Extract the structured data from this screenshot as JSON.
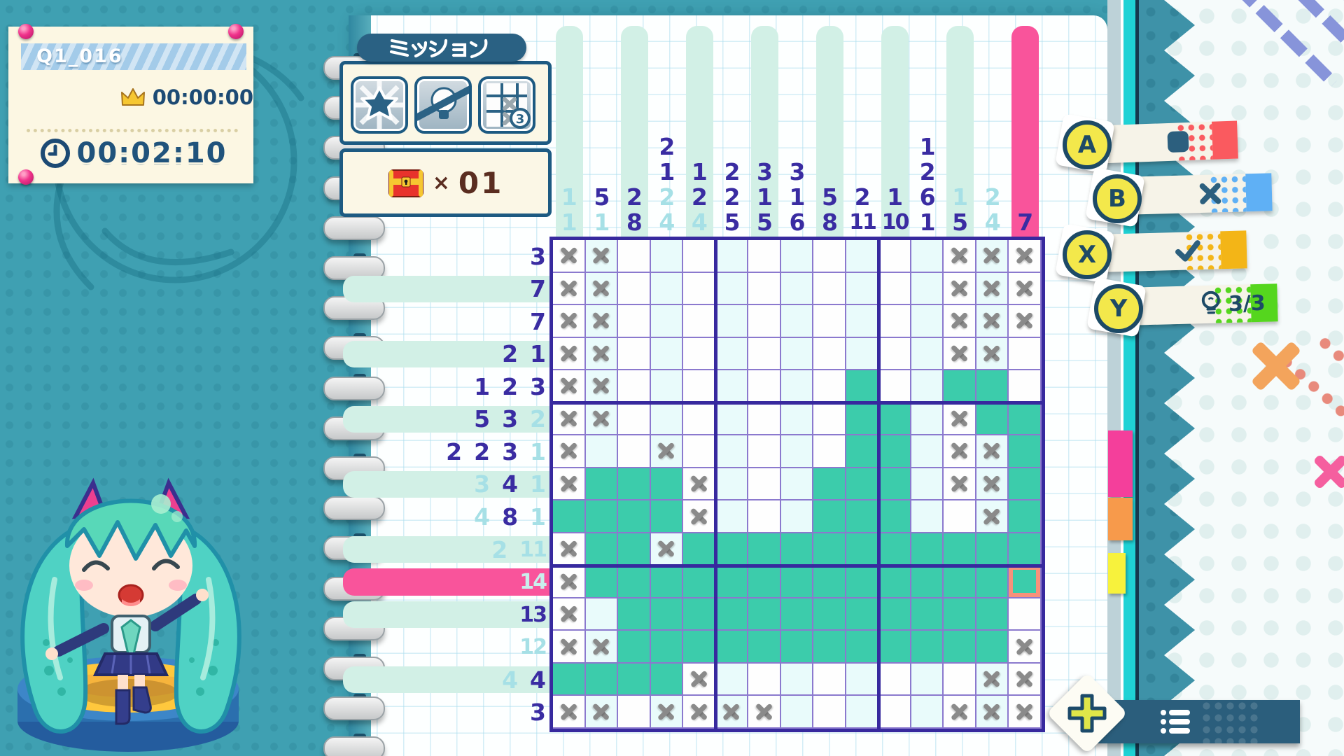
{
  "info_panel": {
    "title": "Q1_016",
    "best_time": "00:00:00",
    "current_time": "00:02:10"
  },
  "mission": {
    "title": "ミッション",
    "icons": [
      {
        "name": "star-clear"
      },
      {
        "name": "no-hints"
      },
      {
        "name": "limited-marks",
        "badge": "3"
      }
    ]
  },
  "treasure": {
    "times_symbol": "×",
    "count": "01"
  },
  "legend": {
    "items": [
      {
        "button": "A",
        "icon": "fill-square",
        "color": "#fa5a5f"
      },
      {
        "button": "B",
        "icon": "x-mark",
        "color": "#5fb0f5"
      },
      {
        "button": "X",
        "icon": "check-mark",
        "color": "#f3b517"
      },
      {
        "button": "Y",
        "icon": "hint-bulb",
        "color": "#55d61e",
        "count": "3/3"
      }
    ]
  },
  "footer": {
    "plus_button": "add",
    "list_button": "list"
  },
  "board": {
    "size": 15,
    "colors": {
      "fill": "#3cccab",
      "mark": "#8a8a8a",
      "hint_dark": "#3a2ca2",
      "hint_faded": "#a6e0e6",
      "highlight": "#f9549b",
      "cursor": "#f8917b",
      "grid_line": "#8b79ce",
      "grid_border": "#37299e",
      "stripe": "#d2f0e6",
      "cell_tint": "#e9fbfb"
    },
    "col_hints": [
      [
        {
          "v": 1,
          "s": "f"
        },
        {
          "v": 1,
          "s": "f"
        }
      ],
      [
        {
          "v": 5,
          "s": "d"
        },
        {
          "v": 1,
          "s": "f"
        }
      ],
      [
        {
          "v": 2,
          "s": "d"
        },
        {
          "v": 8,
          "s": "d"
        }
      ],
      [
        {
          "v": 2,
          "s": "d"
        },
        {
          "v": 1,
          "s": "d"
        },
        {
          "v": 2,
          "s": "f"
        },
        {
          "v": 4,
          "s": "f"
        }
      ],
      [
        {
          "v": 1,
          "s": "d"
        },
        {
          "v": 2,
          "s": "d"
        },
        {
          "v": 4,
          "s": "f"
        }
      ],
      [
        {
          "v": 2,
          "s": "d"
        },
        {
          "v": 2,
          "s": "d"
        },
        {
          "v": 5,
          "s": "d"
        }
      ],
      [
        {
          "v": 3,
          "s": "d"
        },
        {
          "v": 1,
          "s": "d"
        },
        {
          "v": 5,
          "s": "d"
        }
      ],
      [
        {
          "v": 3,
          "s": "d"
        },
        {
          "v": 1,
          "s": "d"
        },
        {
          "v": 6,
          "s": "d"
        }
      ],
      [
        {
          "v": 5,
          "s": "d"
        },
        {
          "v": 8,
          "s": "d"
        }
      ],
      [
        {
          "v": 2,
          "s": "d"
        },
        {
          "v": 11,
          "s": "d"
        }
      ],
      [
        {
          "v": 1,
          "s": "d"
        },
        {
          "v": 10,
          "s": "d"
        }
      ],
      [
        {
          "v": 1,
          "s": "d"
        },
        {
          "v": 2,
          "s": "d"
        },
        {
          "v": 6,
          "s": "d"
        },
        {
          "v": 1,
          "s": "d"
        }
      ],
      [
        {
          "v": 1,
          "s": "f"
        },
        {
          "v": 5,
          "s": "d"
        }
      ],
      [
        {
          "v": 2,
          "s": "f"
        },
        {
          "v": 4,
          "s": "f"
        }
      ],
      [
        {
          "v": 7,
          "s": "d"
        }
      ]
    ],
    "row_hints": [
      [
        {
          "v": 3,
          "s": "d"
        }
      ],
      [
        {
          "v": 7,
          "s": "d"
        }
      ],
      [
        {
          "v": 7,
          "s": "d"
        }
      ],
      [
        {
          "v": 2,
          "s": "d"
        },
        {
          "v": 1,
          "s": "d"
        }
      ],
      [
        {
          "v": 1,
          "s": "d"
        },
        {
          "v": 2,
          "s": "d"
        },
        {
          "v": 3,
          "s": "d"
        }
      ],
      [
        {
          "v": 5,
          "s": "d"
        },
        {
          "v": 3,
          "s": "d"
        },
        {
          "v": 2,
          "s": "f"
        }
      ],
      [
        {
          "v": 2,
          "s": "d"
        },
        {
          "v": 2,
          "s": "d"
        },
        {
          "v": 3,
          "s": "d"
        },
        {
          "v": 1,
          "s": "f"
        }
      ],
      [
        {
          "v": 3,
          "s": "f"
        },
        {
          "v": 4,
          "s": "d"
        },
        {
          "v": 1,
          "s": "f"
        }
      ],
      [
        {
          "v": 4,
          "s": "f"
        },
        {
          "v": 8,
          "s": "d"
        },
        {
          "v": 1,
          "s": "f"
        }
      ],
      [
        {
          "v": 2,
          "s": "f"
        },
        {
          "v": 11,
          "s": "f"
        }
      ],
      [
        {
          "v": 14,
          "s": "p"
        }
      ],
      [
        {
          "v": 13,
          "s": "d"
        }
      ],
      [
        {
          "v": 12,
          "s": "f"
        }
      ],
      [
        {
          "v": 4,
          "s": "f"
        },
        {
          "v": 4,
          "s": "d"
        }
      ],
      [
        {
          "v": 3,
          "s": "d"
        }
      ]
    ],
    "cells": [
      "XXEEEEEEEEEEXXX",
      "XXEEEEEEEEEEXXX",
      "XXEEEEEEEEEEXXX",
      "XXEEEEEEEEEEXXE",
      "XXEEEEEEEFEEFFE",
      "XXEEEEEEEFFEXFF",
      "XEEXEEEEEFFEXXF",
      "XFFFXEEEFFFEXXF",
      "FFFFXEEEFFFEEXF",
      "XFFXFFFFFFFFFFF",
      "XFFFFFFFFFFFFFF",
      "XEFFFFFFFFFFFFE",
      "XXFFFFFFFFFFFFX",
      "FFFFXEEEEEEEEXX",
      "XXEXXXXEEEEEXXX"
    ],
    "cursor": {
      "row": 11,
      "col": 15
    },
    "highlight_row": 11,
    "highlight_col": 15
  }
}
